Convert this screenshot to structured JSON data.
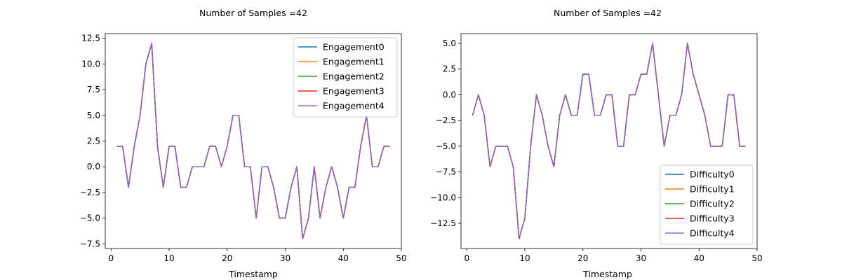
{
  "chart_data": [
    {
      "type": "line",
      "title": "Number of Samples =42",
      "xlabel": "Timestamp",
      "ylabel": "",
      "xlim": [
        -1,
        50
      ],
      "ylim": [
        -7.95,
        12.95
      ],
      "xticks": [
        0,
        10,
        20,
        30,
        40,
        50
      ],
      "yticks": [
        -7.5,
        -5.0,
        -2.5,
        0.0,
        2.5,
        5.0,
        7.5,
        10.0,
        12.5
      ],
      "ytick_labels": [
        "−7.5",
        "−5.0",
        "−2.5",
        "0.0",
        "2.5",
        "5.0",
        "7.5",
        "10.0",
        "12.5"
      ],
      "legend_position": "top-right",
      "x": [
        1,
        2,
        3,
        4,
        5,
        6,
        7,
        8,
        9,
        10,
        11,
        12,
        13,
        14,
        15,
        16,
        17,
        18,
        19,
        20,
        21,
        22,
        23,
        24,
        25,
        26,
        27,
        28,
        29,
        30,
        31,
        32,
        33,
        34,
        35,
        36,
        37,
        38,
        39,
        40,
        41,
        42,
        43,
        44,
        45,
        46,
        47,
        48
      ],
      "series": [
        {
          "name": "Engagement0",
          "color": "#1f77b4",
          "values": [
            2,
            2,
            -2,
            2,
            5,
            10,
            12,
            2,
            -2,
            2,
            2,
            -2,
            -2,
            0,
            0,
            0,
            2,
            2,
            0,
            2,
            5,
            5,
            0,
            0,
            -5,
            0,
            0,
            -2,
            -5,
            -5,
            -2,
            0,
            -7,
            -5,
            0,
            -5,
            -2,
            0,
            -2,
            -5,
            -2,
            -2,
            2,
            5,
            0,
            0,
            2,
            2
          ]
        },
        {
          "name": "Engagement1",
          "color": "#ff7f0e",
          "values": [
            2,
            2,
            -2,
            2,
            5,
            10,
            12,
            2,
            -2,
            2,
            2,
            -2,
            -2,
            0,
            0,
            0,
            2,
            2,
            0,
            2,
            5,
            5,
            0,
            0,
            -5,
            0,
            0,
            -2,
            -5,
            -5,
            -2,
            0,
            -7,
            -5,
            0,
            -5,
            -2,
            0,
            -2,
            -5,
            -2,
            -2,
            2,
            5,
            0,
            0,
            2,
            2
          ]
        },
        {
          "name": "Engagement2",
          "color": "#2ca02c",
          "values": [
            2,
            2,
            -2,
            2,
            5,
            10,
            12,
            2,
            -2,
            2,
            2,
            -2,
            -2,
            0,
            0,
            0,
            2,
            2,
            0,
            2,
            5,
            5,
            0,
            0,
            -5,
            0,
            0,
            -2,
            -5,
            -5,
            -2,
            0,
            -7,
            -5,
            0,
            -5,
            -2,
            0,
            -2,
            -5,
            -2,
            -2,
            2,
            5,
            0,
            0,
            2,
            2
          ]
        },
        {
          "name": "Engagement3",
          "color": "#d62728",
          "values": [
            2,
            2,
            -2,
            2,
            5,
            10,
            12,
            2,
            -2,
            2,
            2,
            -2,
            -2,
            0,
            0,
            0,
            2,
            2,
            0,
            2,
            5,
            5,
            0,
            0,
            -5,
            0,
            0,
            -2,
            -5,
            -5,
            -2,
            0,
            -7,
            -5,
            0,
            -5,
            -2,
            0,
            -2,
            -5,
            -2,
            -2,
            2,
            5,
            0,
            0,
            2,
            2
          ]
        },
        {
          "name": "Engagement4",
          "color": "#9467bd",
          "values": [
            2,
            2,
            -2,
            2,
            5,
            10,
            12,
            2,
            -2,
            2,
            2,
            -2,
            -2,
            0,
            0,
            0,
            2,
            2,
            0,
            2,
            5,
            5,
            0,
            0,
            -5,
            0,
            0,
            -2,
            -5,
            -5,
            -2,
            0,
            -7,
            -5,
            0,
            -5,
            -2,
            0,
            -2,
            -5,
            -2,
            -2,
            2,
            5,
            0,
            0,
            2,
            2
          ]
        }
      ]
    },
    {
      "type": "line",
      "title": "Number of Samples =42",
      "xlabel": "Timestamp",
      "ylabel": "",
      "xlim": [
        -1,
        50
      ],
      "ylim": [
        -14.95,
        5.95
      ],
      "xticks": [
        0,
        10,
        20,
        30,
        40,
        50
      ],
      "yticks": [
        -12.5,
        -10.0,
        -7.5,
        -5.0,
        -2.5,
        0.0,
        2.5,
        5.0
      ],
      "ytick_labels": [
        "−12.5",
        "−10.0",
        "−7.5",
        "−5.0",
        "−2.5",
        "0.0",
        "2.5",
        "5.0"
      ],
      "legend_position": "bottom-right",
      "x": [
        1,
        2,
        3,
        4,
        5,
        6,
        7,
        8,
        9,
        10,
        11,
        12,
        13,
        14,
        15,
        16,
        17,
        18,
        19,
        20,
        21,
        22,
        23,
        24,
        25,
        26,
        27,
        28,
        29,
        30,
        31,
        32,
        33,
        34,
        35,
        36,
        37,
        38,
        39,
        40,
        41,
        42,
        43,
        44,
        45,
        46,
        47,
        48
      ],
      "series": [
        {
          "name": "Difficulty0",
          "color": "#1f77b4",
          "values": [
            -2,
            0,
            -2,
            -7,
            -5,
            -5,
            -5,
            -7,
            -14,
            -12,
            -5,
            0,
            -2,
            -5,
            -7,
            -2,
            0,
            -2,
            -2,
            2,
            2,
            -2,
            -2,
            0,
            0,
            -5,
            -5,
            0,
            0,
            2,
            2,
            5,
            0,
            -5,
            -2,
            -2,
            0,
            5,
            2,
            0,
            -2,
            -5,
            -5,
            -5,
            0,
            0,
            -5,
            -5
          ]
        },
        {
          "name": "Difficulty1",
          "color": "#ff7f0e",
          "values": [
            -2,
            0,
            -2,
            -7,
            -5,
            -5,
            -5,
            -7,
            -14,
            -12,
            -5,
            0,
            -2,
            -5,
            -7,
            -2,
            0,
            -2,
            -2,
            2,
            2,
            -2,
            -2,
            0,
            0,
            -5,
            -5,
            0,
            0,
            2,
            2,
            5,
            0,
            -5,
            -2,
            -2,
            0,
            5,
            2,
            0,
            -2,
            -5,
            -5,
            -5,
            0,
            0,
            -5,
            -5
          ]
        },
        {
          "name": "Difficulty2",
          "color": "#2ca02c",
          "values": [
            -2,
            0,
            -2,
            -7,
            -5,
            -5,
            -5,
            -7,
            -14,
            -12,
            -5,
            0,
            -2,
            -5,
            -7,
            -2,
            0,
            -2,
            -2,
            2,
            2,
            -2,
            -2,
            0,
            0,
            -5,
            -5,
            0,
            0,
            2,
            2,
            5,
            0,
            -5,
            -2,
            -2,
            0,
            5,
            2,
            0,
            -2,
            -5,
            -5,
            -5,
            0,
            0,
            -5,
            -5
          ]
        },
        {
          "name": "Difficulty3",
          "color": "#d62728",
          "values": [
            -2,
            0,
            -2,
            -7,
            -5,
            -5,
            -5,
            -7,
            -14,
            -12,
            -5,
            0,
            -2,
            -5,
            -7,
            -2,
            0,
            -2,
            -2,
            2,
            2,
            -2,
            -2,
            0,
            0,
            -5,
            -5,
            0,
            0,
            2,
            2,
            5,
            0,
            -5,
            -2,
            -2,
            0,
            5,
            2,
            0,
            -2,
            -5,
            -5,
            -5,
            0,
            0,
            -5,
            -5
          ]
        },
        {
          "name": "Difficulty4",
          "color": "#9467bd",
          "values": [
            -2,
            0,
            -2,
            -7,
            -5,
            -5,
            -5,
            -7,
            -14,
            -12,
            -5,
            0,
            -2,
            -5,
            -7,
            -2,
            0,
            -2,
            -2,
            2,
            2,
            -2,
            -2,
            0,
            0,
            -5,
            -5,
            0,
            0,
            2,
            2,
            5,
            0,
            -5,
            -2,
            -2,
            0,
            5,
            2,
            0,
            -2,
            -5,
            -5,
            -5,
            0,
            0,
            -5,
            -5
          ]
        }
      ]
    }
  ]
}
